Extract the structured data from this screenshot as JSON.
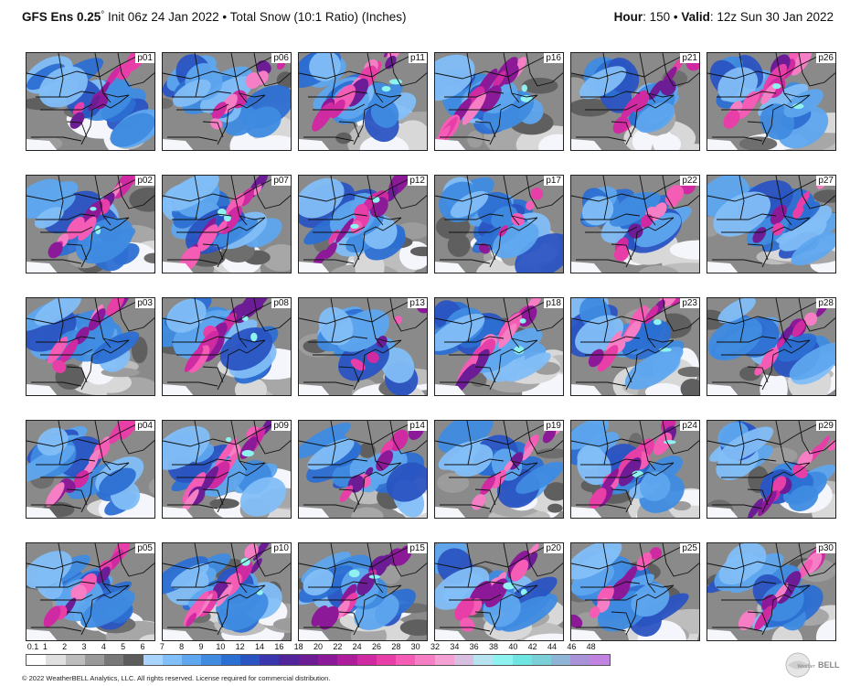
{
  "header": {
    "model": "GFS Ens 0.25",
    "degree": "°",
    "init": " Init 06z 24 Jan 2022",
    "sep1": " • ",
    "product": "Total Snow (10:1 Ratio) (Inches)",
    "hour_label": "Hour",
    "hour_value": ": 150",
    "sep2": " • ",
    "valid_label": "Valid",
    "valid_value": ": 12z Sun 30 Jan 2022"
  },
  "panels": [
    {
      "id": "p01",
      "intensity": 0.55,
      "zone": "ne"
    },
    {
      "id": "p06",
      "intensity": 0.45,
      "zone": "ne"
    },
    {
      "id": "p11",
      "intensity": 0.8,
      "zone": "n"
    },
    {
      "id": "p16",
      "intensity": 0.85,
      "zone": "w"
    },
    {
      "id": "p21",
      "intensity": 0.5,
      "zone": "e"
    },
    {
      "id": "p26",
      "intensity": 0.9,
      "zone": "n"
    },
    {
      "id": "p02",
      "intensity": 0.7,
      "zone": "c"
    },
    {
      "id": "p07",
      "intensity": 0.65,
      "zone": "c"
    },
    {
      "id": "p12",
      "intensity": 0.75,
      "zone": "c"
    },
    {
      "id": "p17",
      "intensity": 0.2,
      "zone": "e"
    },
    {
      "id": "p22",
      "intensity": 0.45,
      "zone": "e"
    },
    {
      "id": "p27",
      "intensity": 0.3,
      "zone": "ne"
    },
    {
      "id": "p03",
      "intensity": 0.6,
      "zone": "n"
    },
    {
      "id": "p08",
      "intensity": 0.75,
      "zone": "n"
    },
    {
      "id": "p13",
      "intensity": 0.1,
      "zone": "e"
    },
    {
      "id": "p18",
      "intensity": 0.8,
      "zone": "c"
    },
    {
      "id": "p23",
      "intensity": 0.65,
      "zone": "n"
    },
    {
      "id": "p28",
      "intensity": 0.5,
      "zone": "ne"
    },
    {
      "id": "p04",
      "intensity": 0.6,
      "zone": "c"
    },
    {
      "id": "p09",
      "intensity": 0.85,
      "zone": "c"
    },
    {
      "id": "p14",
      "intensity": 0.45,
      "zone": "e"
    },
    {
      "id": "p19",
      "intensity": 0.5,
      "zone": "e"
    },
    {
      "id": "p24",
      "intensity": 0.75,
      "zone": "c"
    },
    {
      "id": "p29",
      "intensity": 0.55,
      "zone": "se"
    },
    {
      "id": "p05",
      "intensity": 0.45,
      "zone": "c"
    },
    {
      "id": "p10",
      "intensity": 0.85,
      "zone": "c"
    },
    {
      "id": "p15",
      "intensity": 0.7,
      "zone": "c"
    },
    {
      "id": "p20",
      "intensity": 0.7,
      "zone": "c"
    },
    {
      "id": "p25",
      "intensity": 0.45,
      "zone": "w"
    },
    {
      "id": "p30",
      "intensity": 0.6,
      "zone": "e"
    }
  ],
  "legend": {
    "labels": [
      "0.1",
      "1",
      "2",
      "3",
      "4",
      "5",
      "6",
      "7",
      "8",
      "9",
      "10",
      "12",
      "14",
      "16",
      "18",
      "20",
      "22",
      "24",
      "26",
      "28",
      "30",
      "32",
      "34",
      "36",
      "38",
      "40",
      "42",
      "44",
      "46",
      "48"
    ],
    "colors": [
      "#ffffff",
      "#e0e0e0",
      "#bdbdbd",
      "#9a9a9a",
      "#787878",
      "#5c5c5c",
      "#a8d4ff",
      "#82bef7",
      "#5ea6ee",
      "#3f8be0",
      "#2c6fd2",
      "#2a54c2",
      "#3a36ae",
      "#52249c",
      "#6c1c94",
      "#8c1a98",
      "#ae1c9c",
      "#cf2aa2",
      "#e83ea8",
      "#f45cb6",
      "#f67ec4",
      "#f5a0d2",
      "#d8bfe2",
      "#b7e3f1",
      "#8ef3f0",
      "#6fe5e2",
      "#7bd0d8",
      "#8fb5d6",
      "#a992d8",
      "#c083e2"
    ]
  },
  "copyright": "© 2022 WeatherBELL Analytics, LLC. All rights reserved. License required for commercial distribution.",
  "logo": {
    "text": "BELL",
    "prefix": "Weather"
  }
}
